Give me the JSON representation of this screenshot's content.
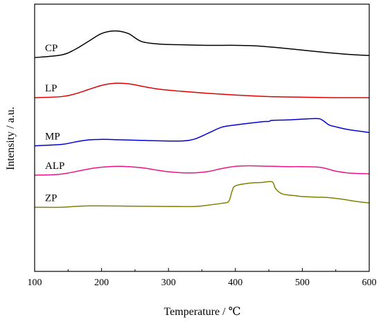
{
  "chart_data": {
    "type": "line",
    "xlabel": "Temperature / ℃",
    "ylabel": "Intensity / a.u.",
    "xlim": [
      100,
      600
    ],
    "xticks": [
      "100",
      "200",
      "300",
      "400",
      "500",
      "600"
    ],
    "y_axis_ticks_labels": false,
    "grid": false,
    "legend": "none",
    "series": [
      {
        "name": "CP",
        "color": "#000000",
        "x": [
          100,
          140,
          160,
          180,
          200,
          220,
          240,
          260,
          290,
          320,
          360,
          400,
          430,
          460,
          500,
          540,
          570,
          600
        ],
        "y": [
          0.8,
          0.81,
          0.83,
          0.86,
          0.89,
          0.9,
          0.89,
          0.86,
          0.85,
          0.848,
          0.846,
          0.846,
          0.844,
          0.838,
          0.828,
          0.818,
          0.812,
          0.808
        ]
      },
      {
        "name": "LP",
        "color": "#e00000",
        "x": [
          100,
          140,
          160,
          180,
          200,
          220,
          240,
          260,
          280,
          300,
          330,
          360,
          400,
          450,
          500,
          550,
          600
        ],
        "y": [
          0.65,
          0.654,
          0.664,
          0.68,
          0.696,
          0.704,
          0.702,
          0.693,
          0.684,
          0.678,
          0.672,
          0.666,
          0.66,
          0.654,
          0.652,
          0.65,
          0.65
        ]
      },
      {
        "name": "MP",
        "color": "#0000dd",
        "x": [
          100,
          140,
          160,
          180,
          200,
          220,
          250,
          280,
          320,
          340,
          360,
          380,
          400,
          440,
          450,
          455,
          480,
          520,
          530,
          540,
          550,
          570,
          600
        ],
        "y": [
          0.47,
          0.475,
          0.484,
          0.492,
          0.494,
          0.493,
          0.491,
          0.489,
          0.488,
          0.496,
          0.518,
          0.54,
          0.548,
          0.56,
          0.561,
          0.565,
          0.567,
          0.572,
          0.566,
          0.548,
          0.541,
          0.53,
          0.52
        ]
      },
      {
        "name": "ALP",
        "color": "#ee1188",
        "x": [
          100,
          130,
          150,
          170,
          190,
          210,
          230,
          260,
          280,
          300,
          320,
          340,
          360,
          380,
          400,
          420,
          440,
          460,
          480,
          500,
          520,
          530,
          540,
          550,
          570,
          600
        ],
        "y": [
          0.36,
          0.362,
          0.368,
          0.378,
          0.387,
          0.392,
          0.393,
          0.388,
          0.38,
          0.373,
          0.369,
          0.369,
          0.374,
          0.385,
          0.393,
          0.395,
          0.394,
          0.393,
          0.392,
          0.392,
          0.391,
          0.388,
          0.382,
          0.375,
          0.368,
          0.365
        ]
      },
      {
        "name": "ZP",
        "color": "#808000",
        "x": [
          100,
          140,
          160,
          180,
          200,
          250,
          300,
          340,
          360,
          380,
          390,
          395,
          400,
          420,
          440,
          455,
          460,
          470,
          490,
          500,
          520,
          540,
          560,
          580,
          600
        ],
        "y": [
          0.24,
          0.24,
          0.243,
          0.245,
          0.245,
          0.244,
          0.243,
          0.243,
          0.248,
          0.255,
          0.262,
          0.3,
          0.32,
          0.33,
          0.333,
          0.335,
          0.31,
          0.29,
          0.283,
          0.28,
          0.278,
          0.276,
          0.27,
          0.262,
          0.256
        ]
      }
    ]
  }
}
